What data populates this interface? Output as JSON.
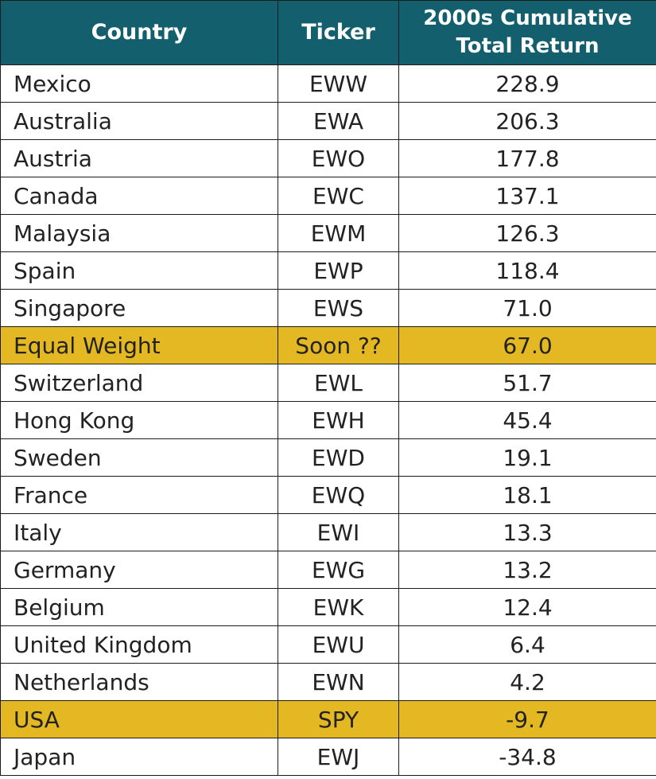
{
  "colors": {
    "header_background": "#145f6e",
    "header_text": "#ffffff",
    "highlight_row": "#e4b822",
    "border": "#1c1c1c"
  },
  "chart_data": {
    "type": "table",
    "columns": [
      "Country",
      "Ticker",
      "2000s Cumulative Total Return"
    ],
    "rows": [
      {
        "country": "Mexico",
        "ticker": "EWW",
        "return": "228.9",
        "highlight": false
      },
      {
        "country": "Australia",
        "ticker": "EWA",
        "return": "206.3",
        "highlight": false
      },
      {
        "country": "Austria",
        "ticker": "EWO",
        "return": "177.8",
        "highlight": false
      },
      {
        "country": "Canada",
        "ticker": "EWC",
        "return": "137.1",
        "highlight": false
      },
      {
        "country": "Malaysia",
        "ticker": "EWM",
        "return": "126.3",
        "highlight": false
      },
      {
        "country": "Spain",
        "ticker": "EWP",
        "return": "118.4",
        "highlight": false
      },
      {
        "country": "Singapore",
        "ticker": "EWS",
        "return": "71.0",
        "highlight": false
      },
      {
        "country": "Equal Weight",
        "ticker": "Soon ??",
        "return": "67.0",
        "highlight": true
      },
      {
        "country": "Switzerland",
        "ticker": "EWL",
        "return": "51.7",
        "highlight": false
      },
      {
        "country": "Hong Kong",
        "ticker": "EWH",
        "return": "45.4",
        "highlight": false
      },
      {
        "country": "Sweden",
        "ticker": "EWD",
        "return": "19.1",
        "highlight": false
      },
      {
        "country": "France",
        "ticker": "EWQ",
        "return": "18.1",
        "highlight": false
      },
      {
        "country": "Italy",
        "ticker": "EWI",
        "return": "13.3",
        "highlight": false
      },
      {
        "country": "Germany",
        "ticker": "EWG",
        "return": "13.2",
        "highlight": false
      },
      {
        "country": "Belgium",
        "ticker": "EWK",
        "return": "12.4",
        "highlight": false
      },
      {
        "country": "United Kingdom",
        "ticker": "EWU",
        "return": "6.4",
        "highlight": false
      },
      {
        "country": "Netherlands",
        "ticker": "EWN",
        "return": "4.2",
        "highlight": false
      },
      {
        "country": "USA",
        "ticker": "SPY",
        "return": "-9.7",
        "highlight": true
      },
      {
        "country": "Japan",
        "ticker": "EWJ",
        "return": "-34.8",
        "highlight": false
      }
    ]
  }
}
